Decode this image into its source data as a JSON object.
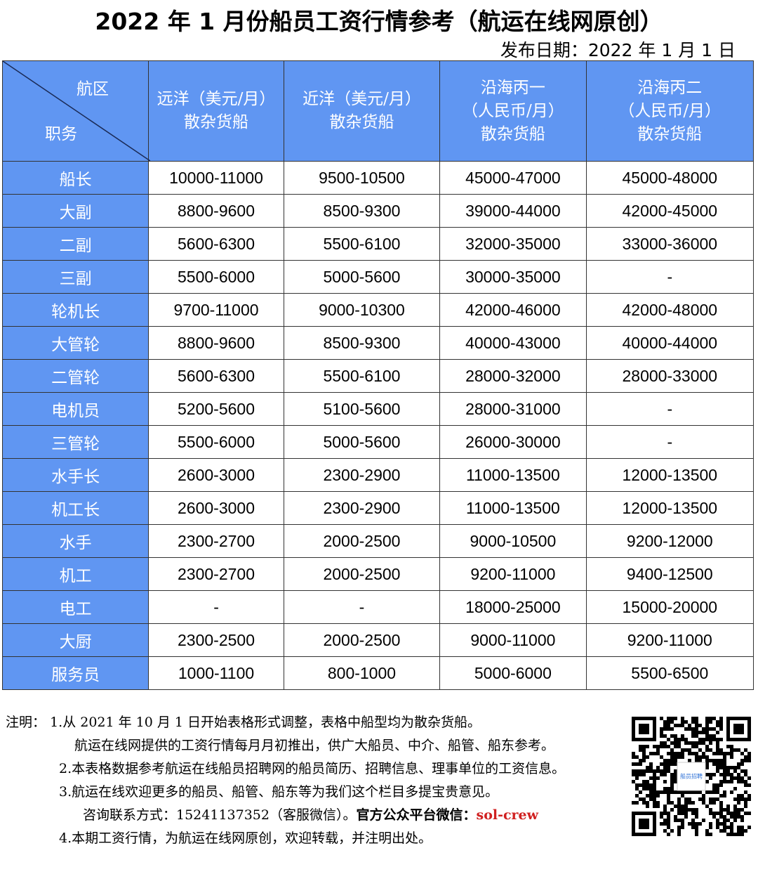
{
  "title": "2022 年 1 月份船员工资行情参考（航运在线网原创）",
  "publish_date": "发布日期：2022 年 1 月 1 日",
  "table": {
    "corner_top": "航区",
    "corner_bottom": "职务",
    "headers": [
      [
        "远洋（美元/月）",
        "散杂货船"
      ],
      [
        "近洋（美元/月）",
        "散杂货船"
      ],
      [
        "沿海丙一",
        "（人民币/月）",
        "散杂货船"
      ],
      [
        "沿海丙二",
        "（人民币/月）",
        "散杂货船"
      ]
    ],
    "rows": [
      [
        "船长",
        "10000-11000",
        "9500-10500",
        "45000-47000",
        "45000-48000"
      ],
      [
        "大副",
        "8800-9600",
        "8500-9300",
        "39000-44000",
        "42000-45000"
      ],
      [
        "二副",
        "5600-6300",
        "5500-6100",
        "32000-35000",
        "33000-36000"
      ],
      [
        "三副",
        "5500-6000",
        "5000-5600",
        "30000-35000",
        "-"
      ],
      [
        "轮机长",
        "9700-11000",
        "9000-10300",
        "42000-46000",
        "42000-48000"
      ],
      [
        "大管轮",
        "8800-9600",
        "8500-9300",
        "40000-43000",
        "40000-44000"
      ],
      [
        "二管轮",
        "5600-6300",
        "5500-6100",
        "28000-32000",
        "28000-33000"
      ],
      [
        "电机员",
        "5200-5600",
        "5100-5600",
        "28000-31000",
        "-"
      ],
      [
        "三管轮",
        "5500-6000",
        "5000-5600",
        "26000-30000",
        "-"
      ],
      [
        "水手长",
        "2600-3000",
        "2300-2900",
        "11000-13500",
        "12000-13500"
      ],
      [
        "机工长",
        "2600-3000",
        "2300-2900",
        "11000-13500",
        "12000-13500"
      ],
      [
        "水手",
        "2300-2700",
        "2000-2500",
        "9000-10500",
        "9200-12000"
      ],
      [
        "机工",
        "2300-2700",
        "2000-2500",
        "9200-11000",
        "9400-12500"
      ],
      [
        "电工",
        "-",
        "-",
        "18000-25000",
        "15000-20000"
      ],
      [
        "大厨",
        "2300-2500",
        "2000-2500",
        "9000-11000",
        "9200-11000"
      ],
      [
        "服务员",
        "1000-1100",
        "800-1000",
        "5000-6000",
        "5500-6500"
      ]
    ]
  },
  "notes": {
    "label": "注明：",
    "n1": "1.从 2021 年 10 月 1 日开始表格形式调整，表格中船型均为散杂货船。",
    "n1b": "航运在线网提供的工资行情每月月初推出，供广大船员、中介、船管、船东参考。",
    "n2": "2.本表格数据参考航运在线船员招聘网的船员简历、招聘信息、理事单位的工资信息。",
    "n3": "3.航运在线欢迎更多的船员、船管、船东等为我们这个栏目多提宝贵意见。",
    "contact": "咨询联系方式：15241137352（客服微信）。",
    "official": "官方公众平台微信：",
    "wechat": "sol-crew",
    "n4": "4.本期工资行情，为航运在线网原创，欢迎转载，并注明出处。"
  },
  "qr_label": "船员招聘",
  "colors": {
    "header_bg": "#6096f2",
    "accent_red": "#d02020"
  }
}
